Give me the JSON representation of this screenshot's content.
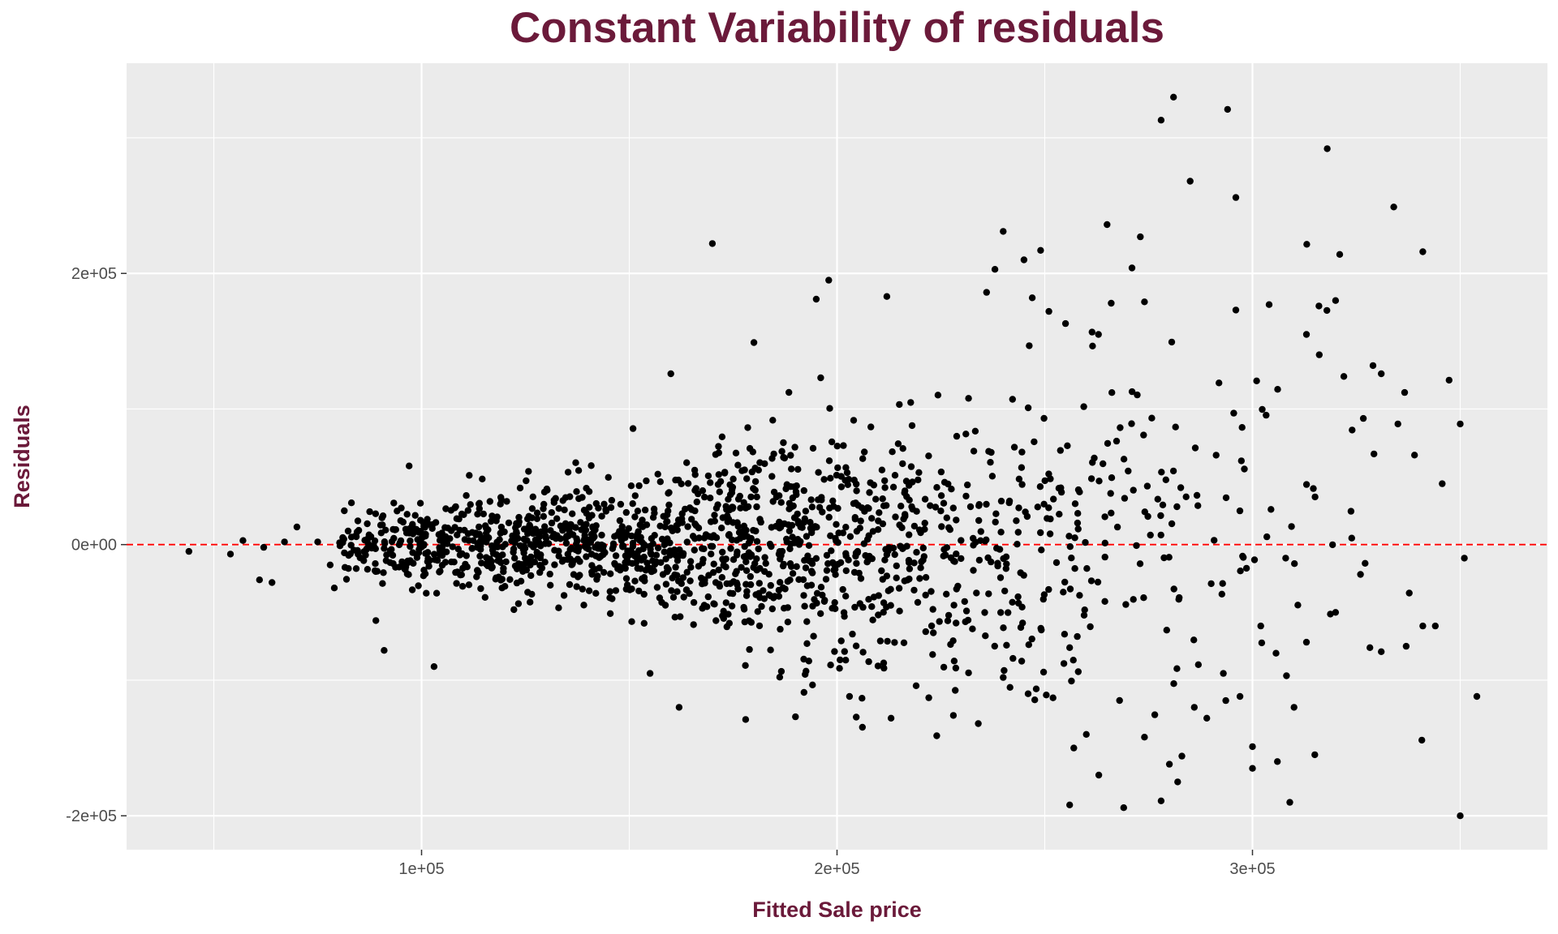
{
  "chart_data": {
    "type": "scatter",
    "title": "Constant Variability of residuals",
    "xlabel": "Fitted Sale price",
    "ylabel": "Residuals",
    "xlim": [
      29000,
      371000
    ],
    "ylim": [
      -225000,
      355000
    ],
    "x_ticks": [
      {
        "value": 100000,
        "label": "1e+05"
      },
      {
        "value": 200000,
        "label": "2e+05"
      },
      {
        "value": 300000,
        "label": "3e+05"
      }
    ],
    "y_ticks": [
      {
        "value": 200000,
        "label": "2e+05"
      },
      {
        "value": 0,
        "label": "0e+00"
      },
      {
        "value": -200000,
        "label": "-2e+05"
      }
    ],
    "grid": true,
    "reference_line": {
      "y": 0,
      "style": "dashed",
      "color": "#ff0000"
    },
    "colors": {
      "title": "#6b1a3a",
      "panel": "#ebebeb",
      "grid": "#ffffff",
      "points": "#000000"
    },
    "outlier_points": [
      {
        "x": 44000,
        "y": -5000
      },
      {
        "x": 54000,
        "y": -7000
      },
      {
        "x": 57000,
        "y": 3000
      },
      {
        "x": 61000,
        "y": -26000
      },
      {
        "x": 62000,
        "y": -2000
      },
      {
        "x": 64000,
        "y": -28000
      },
      {
        "x": 67000,
        "y": 2000
      },
      {
        "x": 70000,
        "y": 13000
      },
      {
        "x": 75000,
        "y": 2000
      },
      {
        "x": 78000,
        "y": -15000
      },
      {
        "x": 79000,
        "y": -32000
      },
      {
        "x": 91000,
        "y": -78000
      },
      {
        "x": 89000,
        "y": -56000
      },
      {
        "x": 103000,
        "y": -90000
      },
      {
        "x": 97000,
        "y": 58000
      },
      {
        "x": 162000,
        "y": -120000
      },
      {
        "x": 155000,
        "y": -95000
      },
      {
        "x": 160000,
        "y": 126000
      },
      {
        "x": 170000,
        "y": 222000
      },
      {
        "x": 178000,
        "y": -129000
      },
      {
        "x": 180000,
        "y": 149000
      },
      {
        "x": 190000,
        "y": -127000
      },
      {
        "x": 195000,
        "y": 181000
      },
      {
        "x": 198000,
        "y": 195000
      },
      {
        "x": 203000,
        "y": -112000
      },
      {
        "x": 212000,
        "y": 183000
      },
      {
        "x": 213000,
        "y": -128000
      },
      {
        "x": 224000,
        "y": -141000
      },
      {
        "x": 228000,
        "y": -126000
      },
      {
        "x": 234000,
        "y": -132000
      },
      {
        "x": 236000,
        "y": 186000
      },
      {
        "x": 238000,
        "y": 203000
      },
      {
        "x": 240000,
        "y": 231000
      },
      {
        "x": 245000,
        "y": 210000
      },
      {
        "x": 247000,
        "y": 182000
      },
      {
        "x": 249000,
        "y": 217000
      },
      {
        "x": 251000,
        "y": 172000
      },
      {
        "x": 255000,
        "y": 163000
      },
      {
        "x": 256000,
        "y": -192000
      },
      {
        "x": 257000,
        "y": -150000
      },
      {
        "x": 263000,
        "y": -170000
      },
      {
        "x": 265000,
        "y": 236000
      },
      {
        "x": 266000,
        "y": 178000
      },
      {
        "x": 269000,
        "y": -194000
      },
      {
        "x": 271000,
        "y": 204000
      },
      {
        "x": 273000,
        "y": 227000
      },
      {
        "x": 274000,
        "y": 179000
      },
      {
        "x": 274000,
        "y": -142000
      },
      {
        "x": 278000,
        "y": -189000
      },
      {
        "x": 278000,
        "y": 313000
      },
      {
        "x": 280000,
        "y": -162000
      },
      {
        "x": 281000,
        "y": 330000
      },
      {
        "x": 282000,
        "y": -175000
      },
      {
        "x": 283000,
        "y": -156000
      },
      {
        "x": 285000,
        "y": 268000
      },
      {
        "x": 294000,
        "y": 321000
      },
      {
        "x": 296000,
        "y": 256000
      },
      {
        "x": 296000,
        "y": 173000
      },
      {
        "x": 300000,
        "y": -149000
      },
      {
        "x": 300000,
        "y": -165000
      },
      {
        "x": 304000,
        "y": 177000
      },
      {
        "x": 306000,
        "y": -160000
      },
      {
        "x": 310000,
        "y": -120000
      },
      {
        "x": 313000,
        "y": 155000
      },
      {
        "x": 315000,
        "y": -155000
      },
      {
        "x": 316000,
        "y": 176000
      },
      {
        "x": 318000,
        "y": 292000
      },
      {
        "x": 320000,
        "y": 180000
      },
      {
        "x": 321000,
        "y": 214000
      },
      {
        "x": 322000,
        "y": 124000
      },
      {
        "x": 329000,
        "y": 132000
      },
      {
        "x": 331000,
        "y": 126000
      },
      {
        "x": 334000,
        "y": 249000
      },
      {
        "x": 335000,
        "y": 89000
      },
      {
        "x": 339000,
        "y": 66000
      },
      {
        "x": 341000,
        "y": 216000
      },
      {
        "x": 341000,
        "y": -60000
      },
      {
        "x": 344000,
        "y": -60000
      },
      {
        "x": 350000,
        "y": 89000
      },
      {
        "x": 350000,
        "y": -200000
      },
      {
        "x": 351000,
        "y": -10000
      },
      {
        "x": 354000,
        "y": -112000
      },
      {
        "x": 331000,
        "y": -79000
      },
      {
        "x": 337000,
        "y": -75000
      },
      {
        "x": 326000,
        "y": -22000
      },
      {
        "x": 320000,
        "y": -50000
      },
      {
        "x": 313000,
        "y": -72000
      },
      {
        "x": 308000,
        "y": -10000
      },
      {
        "x": 302000,
        "y": -60000
      },
      {
        "x": 297000,
        "y": -112000
      },
      {
        "x": 293000,
        "y": -95000
      },
      {
        "x": 289000,
        "y": -128000
      },
      {
        "x": 286000,
        "y": -120000
      },
      {
        "x": 268000,
        "y": -115000
      },
      {
        "x": 260000,
        "y": -140000
      },
      {
        "x": 252000,
        "y": -113000
      },
      {
        "x": 246000,
        "y": -110000
      },
      {
        "x": 240000,
        "y": -98000
      }
    ],
    "cluster_model": {
      "n_points": 1600,
      "x_center": 165000,
      "x_spread": 62000,
      "x_min": 80000,
      "x_max": 350000,
      "residual_sd_at": [
        {
          "x": 80000,
          "sd": 12000
        },
        {
          "x": 120000,
          "sd": 19000
        },
        {
          "x": 160000,
          "sd": 30000
        },
        {
          "x": 200000,
          "sd": 45000
        },
        {
          "x": 250000,
          "sd": 60000
        },
        {
          "x": 300000,
          "sd": 80000
        },
        {
          "x": 350000,
          "sd": 95000
        }
      ]
    }
  }
}
